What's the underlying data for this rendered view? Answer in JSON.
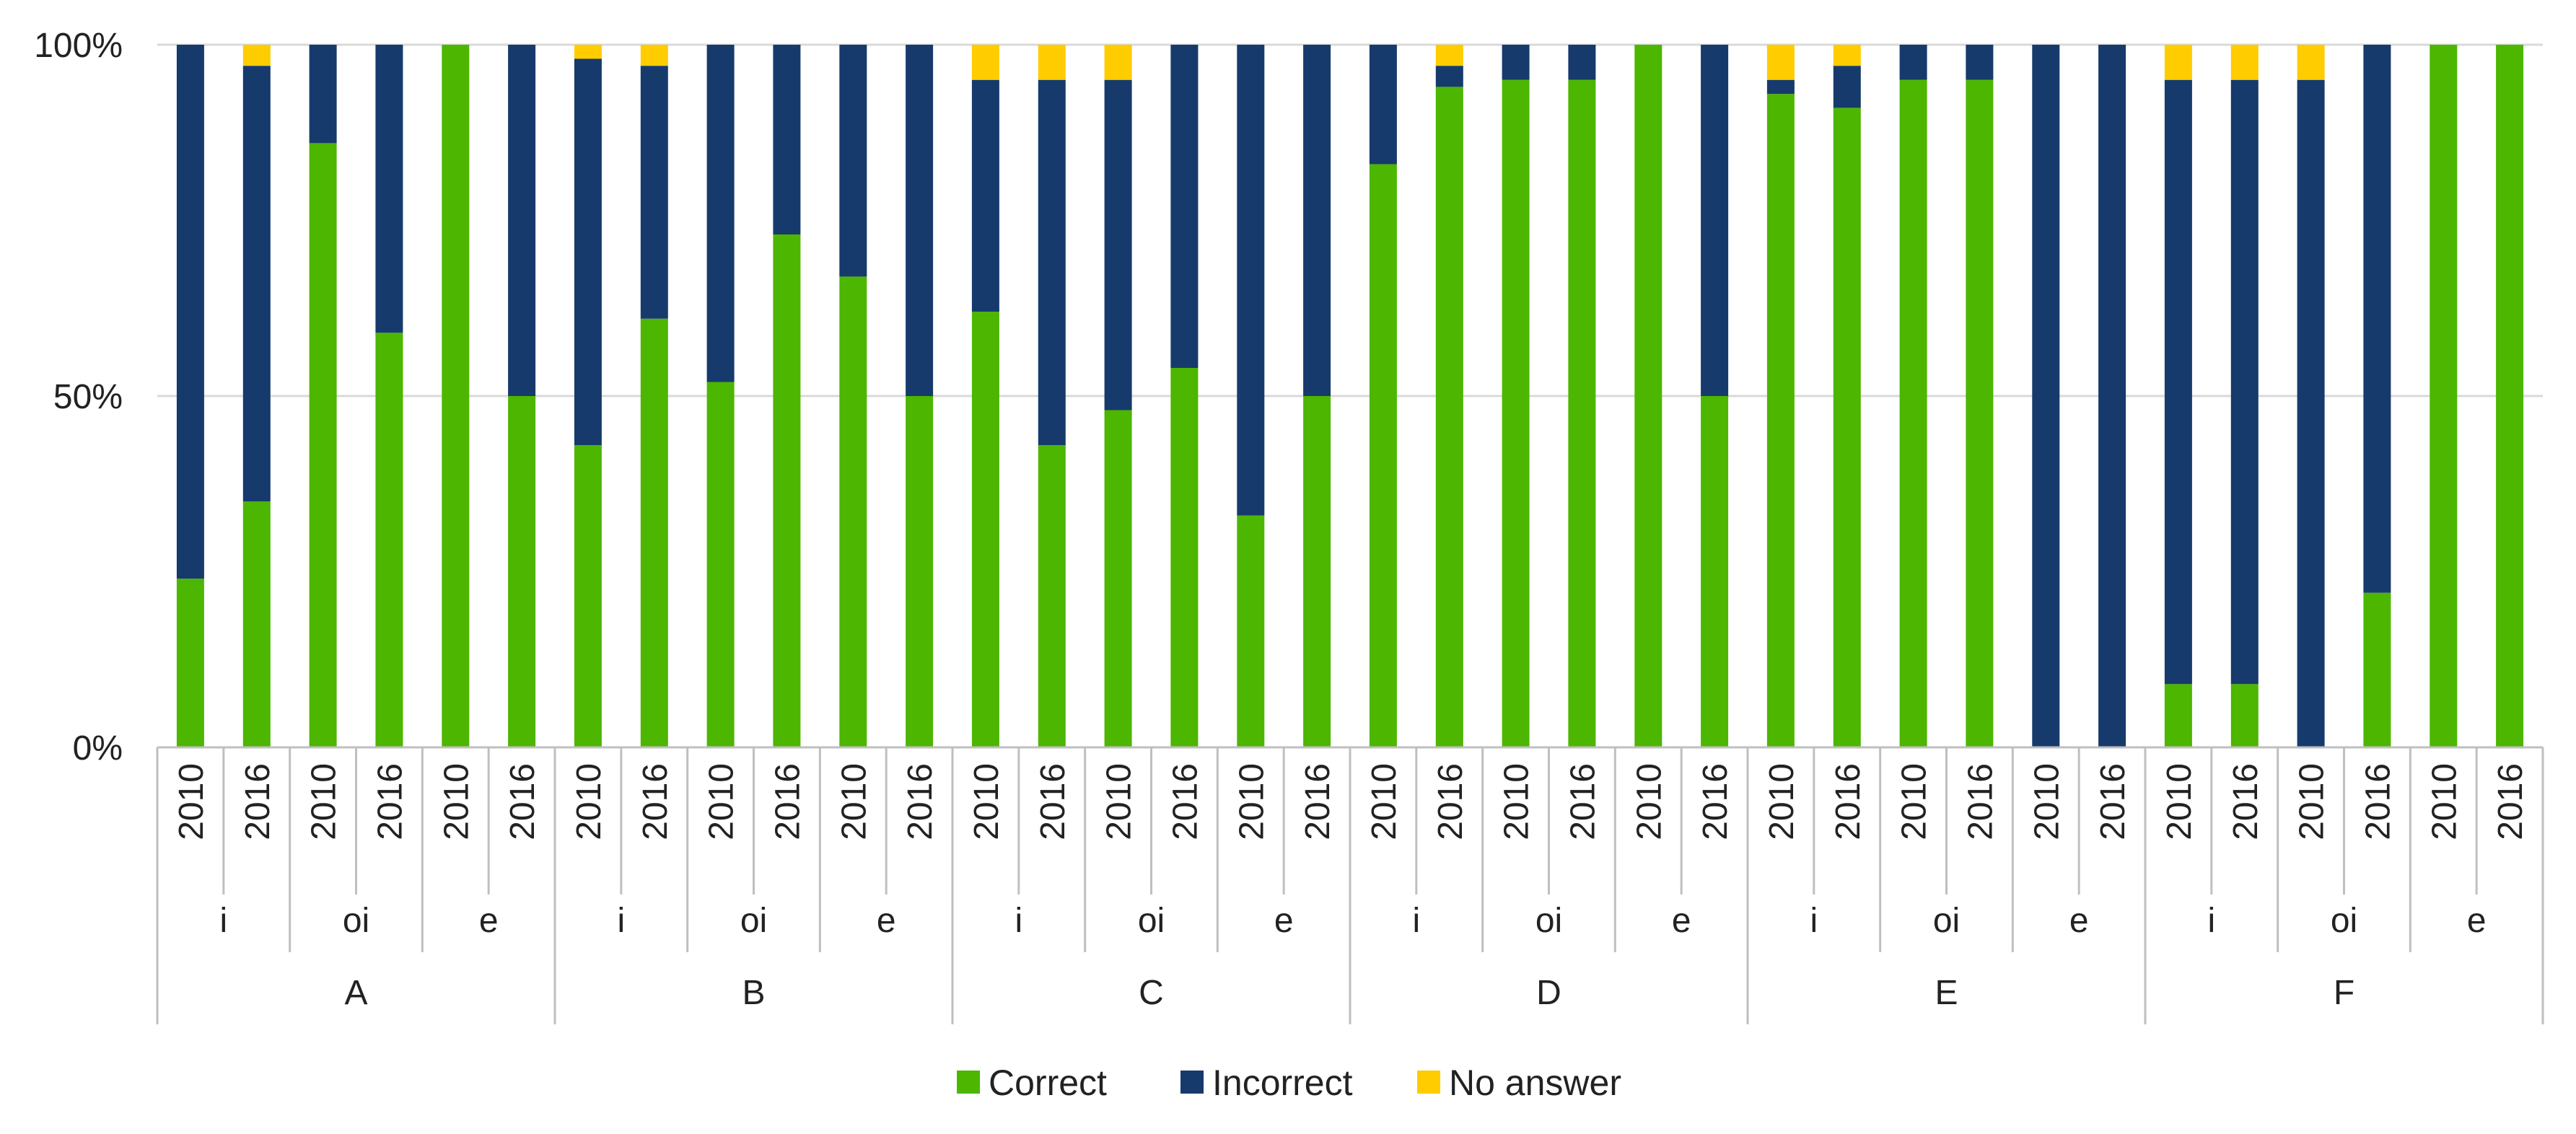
{
  "chart_data": {
    "type": "bar",
    "stacked": true,
    "stack_mode": "percent",
    "title": "",
    "xlabel": "",
    "ylabel": "",
    "ylim": [
      0,
      100
    ],
    "y_ticks": [
      "0%",
      "50%",
      "100%"
    ],
    "y_tick_values": [
      0,
      50,
      100
    ],
    "grid": true,
    "legend_position": "bottom",
    "groups": [
      "A",
      "B",
      "C",
      "D",
      "E",
      "F"
    ],
    "subgroups": [
      "i",
      "oi",
      "e"
    ],
    "years": [
      "2010",
      "2016"
    ],
    "categories": [
      "A i 2010",
      "A i 2016",
      "A oi 2010",
      "A oi 2016",
      "A e 2010",
      "A e 2016",
      "B i 2010",
      "B i 2016",
      "B oi 2010",
      "B oi 2016",
      "B e 2010",
      "B e 2016",
      "C i 2010",
      "C i 2016",
      "C oi 2010",
      "C oi 2016",
      "C e 2010",
      "C e 2016",
      "D i 2010",
      "D i 2016",
      "D oi 2010",
      "D oi 2016",
      "D e 2010",
      "D e 2016",
      "E i 2010",
      "E i 2016",
      "E oi 2010",
      "E oi 2016",
      "E e 2010",
      "E e 2016",
      "F i 2010",
      "F i 2016",
      "F oi 2010",
      "F oi 2016",
      "F e 2010",
      "F e 2016"
    ],
    "series": [
      {
        "name": "Correct",
        "color": "#4cb600",
        "values": [
          24,
          35,
          86,
          59,
          100,
          50,
          43,
          61,
          52,
          73,
          67,
          50,
          62,
          43,
          48,
          54,
          33,
          50,
          83,
          94,
          95,
          95,
          100,
          50,
          93,
          91,
          95,
          95,
          0,
          0,
          9,
          9,
          0,
          22,
          100,
          100
        ]
      },
      {
        "name": "Incorrect",
        "color": "#163a6c",
        "values": [
          76,
          62,
          14,
          41,
          0,
          50,
          55,
          36,
          48,
          27,
          33,
          50,
          33,
          52,
          47,
          46,
          67,
          50,
          17,
          3,
          5,
          5,
          0,
          50,
          2,
          6,
          5,
          5,
          100,
          100,
          86,
          86,
          95,
          78,
          0,
          0
        ]
      },
      {
        "name": "No answer",
        "color": "#ffcc00",
        "values": [
          0,
          3,
          0,
          0,
          0,
          0,
          2,
          3,
          0,
          0,
          0,
          0,
          5,
          5,
          5,
          0,
          0,
          0,
          0,
          3,
          0,
          0,
          0,
          0,
          5,
          3,
          0,
          0,
          0,
          0,
          5,
          5,
          5,
          0,
          0,
          0
        ]
      }
    ]
  }
}
